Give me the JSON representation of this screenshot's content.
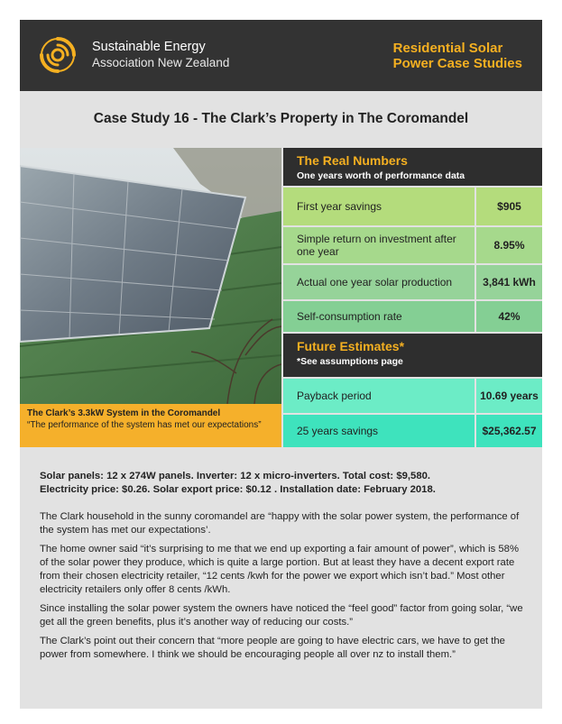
{
  "header": {
    "org_line1": "Sustainable Energy",
    "org_line2": "Association New Zealand",
    "series_line1": "Residential Solar",
    "series_line2": "Power Case Studies",
    "logo_icon": "sun-swirl-icon",
    "accent_color": "#f5b021"
  },
  "title": "Case Study 16 - The Clark’s Property in The Coromandel",
  "photo": {
    "caption_title": "The Clark’s 3.3kW System in the Coromandel",
    "caption_quote": "“The performance of the system has met our expectations”"
  },
  "real_numbers": {
    "heading": "The Real Numbers",
    "subheading": "One years worth of performance data",
    "rows": [
      {
        "label": "First year savings",
        "value": "$905"
      },
      {
        "label": "Simple return on investment after one year",
        "value": "8.95%"
      },
      {
        "label": "Actual one year solar production",
        "value": "3,841 kWh"
      },
      {
        "label": "Self-consumption rate",
        "value": "42%"
      }
    ]
  },
  "future": {
    "heading": "Future Estimates*",
    "subheading": "*See assumptions page",
    "rows": [
      {
        "label": "Payback period",
        "value": "10.69 years"
      },
      {
        "label": "25 years savings",
        "value": "$25,362.57"
      }
    ]
  },
  "specs": {
    "line1": "Solar panels: 12 x 274W panels. Inverter: 12 x micro-inverters. Total cost: $9,580.",
    "line2": "Electricity price: $0.26. Solar export price: $0.12 . Installation date: February 2018."
  },
  "paragraphs": [
    "The Clark household in the sunny coromandel are “happy with the solar power system, the performance of the system has met our expectations’.",
    "The home owner said “it’s surprising to me that we end up exporting a fair amount of power”, which is 58% of the solar power they produce, which is quite a large portion. But at least they have a decent export rate from their chosen electricity retailer, “12 cents /kwh for the power we export which isn’t bad.” Most other electricity retailers only offer 8 cents /kWh.",
    "Since installing the solar power system the owners have noticed the “feel good” factor from going solar, “we get all the green benefits, plus it’s another way of reducing our costs.”",
    "The Clark’s point out their concern that “more people are going to have electric cars, we have to get the power from somewhere.  I think we should be encouraging people all over nz to install them.”"
  ]
}
